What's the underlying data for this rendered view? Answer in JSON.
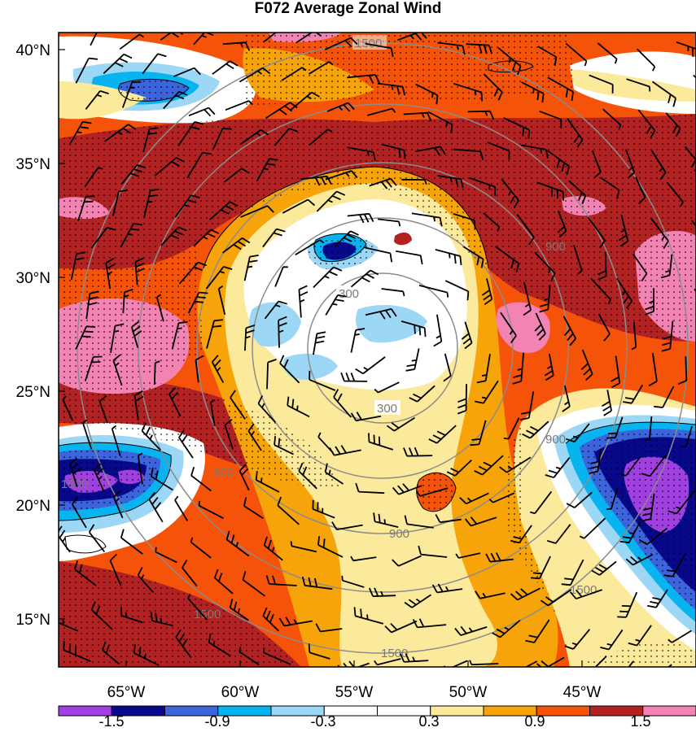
{
  "title": "F072 Average Zonal Wind",
  "lat_labels": [
    "40°N",
    "35°N",
    "30°N",
    "25°N",
    "20°N",
    "15°N"
  ],
  "lon_labels": [
    "65°W",
    "60°W",
    "55°W",
    "50°W",
    "45°W"
  ],
  "colorbar": {
    "colors": [
      "#a040e0",
      "#08088c",
      "#3c64dc",
      "#08b4f0",
      "#9cd8f5",
      "#ffffff",
      "#ffffff",
      "#fcea9c",
      "#f7a30a",
      "#f5520a",
      "#b22222",
      "#f383b3"
    ],
    "labels": [
      "-1.5",
      "-0.9",
      "-0.3",
      "0.3",
      "0.9",
      "1.5"
    ]
  },
  "range_rings": [
    "300",
    "900",
    "1500"
  ]
}
